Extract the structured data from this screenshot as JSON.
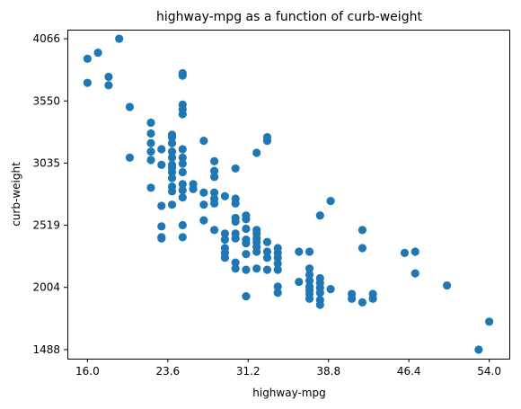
{
  "chart_data": {
    "type": "scatter",
    "title": "highway-mpg as a function of curb-weight",
    "xlabel": "highway-mpg",
    "ylabel": "curb-weight",
    "xlim": [
      14.1,
      55.9
    ],
    "ylim": [
      1413,
      4141
    ],
    "x_ticks": [
      "16.0",
      "23.6",
      "31.2",
      "38.8",
      "46.4",
      "54.0"
    ],
    "y_ticks": [
      "1488",
      "2004",
      "2519",
      "3035",
      "3550",
      "4066"
    ],
    "grid": false,
    "marker_color": "#1f77b4",
    "points": [
      {
        "x": 16,
        "y": 3900
      },
      {
        "x": 16,
        "y": 3700
      },
      {
        "x": 17,
        "y": 3950
      },
      {
        "x": 18,
        "y": 3750
      },
      {
        "x": 18,
        "y": 3680
      },
      {
        "x": 19,
        "y": 4066
      },
      {
        "x": 20,
        "y": 3500
      },
      {
        "x": 20,
        "y": 3080
      },
      {
        "x": 22,
        "y": 3370
      },
      {
        "x": 22,
        "y": 3280
      },
      {
        "x": 22,
        "y": 3200
      },
      {
        "x": 22,
        "y": 3130
      },
      {
        "x": 22,
        "y": 3060
      },
      {
        "x": 22,
        "y": 2830
      },
      {
        "x": 23,
        "y": 3150
      },
      {
        "x": 23,
        "y": 3020
      },
      {
        "x": 23,
        "y": 2680
      },
      {
        "x": 23,
        "y": 2510
      },
      {
        "x": 23,
        "y": 2420
      },
      {
        "x": 23,
        "y": 2410
      },
      {
        "x": 24,
        "y": 3270
      },
      {
        "x": 24,
        "y": 3200
      },
      {
        "x": 24,
        "y": 3130
      },
      {
        "x": 24,
        "y": 3080
      },
      {
        "x": 24,
        "y": 3020
      },
      {
        "x": 24,
        "y": 2960
      },
      {
        "x": 24,
        "y": 2910
      },
      {
        "x": 24,
        "y": 2840
      },
      {
        "x": 24,
        "y": 2800
      },
      {
        "x": 24,
        "y": 2690
      },
      {
        "x": 24,
        "y": 3250
      },
      {
        "x": 24,
        "y": 2995
      },
      {
        "x": 25,
        "y": 3780
      },
      {
        "x": 25,
        "y": 3760
      },
      {
        "x": 25,
        "y": 3520
      },
      {
        "x": 25,
        "y": 3480
      },
      {
        "x": 25,
        "y": 3440
      },
      {
        "x": 25,
        "y": 3150
      },
      {
        "x": 25,
        "y": 3080
      },
      {
        "x": 25,
        "y": 3030
      },
      {
        "x": 25,
        "y": 2960
      },
      {
        "x": 25,
        "y": 2860
      },
      {
        "x": 25,
        "y": 2810
      },
      {
        "x": 25,
        "y": 2750
      },
      {
        "x": 25,
        "y": 2520
      },
      {
        "x": 25,
        "y": 2420
      },
      {
        "x": 26,
        "y": 2860
      },
      {
        "x": 26,
        "y": 2820
      },
      {
        "x": 27,
        "y": 3220
      },
      {
        "x": 27,
        "y": 2790
      },
      {
        "x": 27,
        "y": 2690
      },
      {
        "x": 27,
        "y": 2560
      },
      {
        "x": 28,
        "y": 3050
      },
      {
        "x": 28,
        "y": 2970
      },
      {
        "x": 28,
        "y": 2920
      },
      {
        "x": 28,
        "y": 2790
      },
      {
        "x": 28,
        "y": 2740
      },
      {
        "x": 28,
        "y": 2700
      },
      {
        "x": 28,
        "y": 2480
      },
      {
        "x": 29,
        "y": 2760
      },
      {
        "x": 29,
        "y": 2450
      },
      {
        "x": 29,
        "y": 2400
      },
      {
        "x": 29,
        "y": 2330
      },
      {
        "x": 29,
        "y": 2290
      },
      {
        "x": 29,
        "y": 2250
      },
      {
        "x": 30,
        "y": 2990
      },
      {
        "x": 30,
        "y": 2740
      },
      {
        "x": 30,
        "y": 2700
      },
      {
        "x": 30,
        "y": 2580
      },
      {
        "x": 30,
        "y": 2550
      },
      {
        "x": 30,
        "y": 2450
      },
      {
        "x": 30,
        "y": 2410
      },
      {
        "x": 30,
        "y": 2210
      },
      {
        "x": 30,
        "y": 2160
      },
      {
        "x": 31,
        "y": 2600
      },
      {
        "x": 31,
        "y": 2570
      },
      {
        "x": 31,
        "y": 2490
      },
      {
        "x": 31,
        "y": 2400
      },
      {
        "x": 31,
        "y": 2370
      },
      {
        "x": 31,
        "y": 2280
      },
      {
        "x": 31,
        "y": 2150
      },
      {
        "x": 31,
        "y": 1930
      },
      {
        "x": 32,
        "y": 3120
      },
      {
        "x": 32,
        "y": 2480
      },
      {
        "x": 32,
        "y": 2450
      },
      {
        "x": 32,
        "y": 2410
      },
      {
        "x": 32,
        "y": 2380
      },
      {
        "x": 32,
        "y": 2340
      },
      {
        "x": 32,
        "y": 2300
      },
      {
        "x": 32,
        "y": 2160
      },
      {
        "x": 33,
        "y": 3250
      },
      {
        "x": 33,
        "y": 3220
      },
      {
        "x": 33,
        "y": 2380
      },
      {
        "x": 33,
        "y": 2300
      },
      {
        "x": 33,
        "y": 2250
      },
      {
        "x": 33,
        "y": 2150
      },
      {
        "x": 34,
        "y": 2330
      },
      {
        "x": 34,
        "y": 2290
      },
      {
        "x": 34,
        "y": 2250
      },
      {
        "x": 34,
        "y": 2200
      },
      {
        "x": 34,
        "y": 2150
      },
      {
        "x": 34,
        "y": 2010
      },
      {
        "x": 34,
        "y": 1960
      },
      {
        "x": 36,
        "y": 2300
      },
      {
        "x": 36,
        "y": 2050
      },
      {
        "x": 37,
        "y": 2300
      },
      {
        "x": 37,
        "y": 2160
      },
      {
        "x": 37,
        "y": 2110
      },
      {
        "x": 37,
        "y": 2060
      },
      {
        "x": 37,
        "y": 2010
      },
      {
        "x": 37,
        "y": 1980
      },
      {
        "x": 37,
        "y": 1950
      },
      {
        "x": 37,
        "y": 1910
      },
      {
        "x": 38,
        "y": 2600
      },
      {
        "x": 38,
        "y": 2080
      },
      {
        "x": 38,
        "y": 2040
      },
      {
        "x": 38,
        "y": 2000
      },
      {
        "x": 38,
        "y": 1960
      },
      {
        "x": 38,
        "y": 1900
      },
      {
        "x": 38,
        "y": 1860
      },
      {
        "x": 39,
        "y": 2720
      },
      {
        "x": 39,
        "y": 1990
      },
      {
        "x": 41,
        "y": 1950
      },
      {
        "x": 41,
        "y": 1910
      },
      {
        "x": 42,
        "y": 2480
      },
      {
        "x": 42,
        "y": 2330
      },
      {
        "x": 42,
        "y": 1880
      },
      {
        "x": 43,
        "y": 1950
      },
      {
        "x": 43,
        "y": 1910
      },
      {
        "x": 46,
        "y": 2290
      },
      {
        "x": 47,
        "y": 2300
      },
      {
        "x": 47,
        "y": 2120
      },
      {
        "x": 50,
        "y": 2020
      },
      {
        "x": 53,
        "y": 1488
      },
      {
        "x": 54,
        "y": 1720
      }
    ]
  }
}
